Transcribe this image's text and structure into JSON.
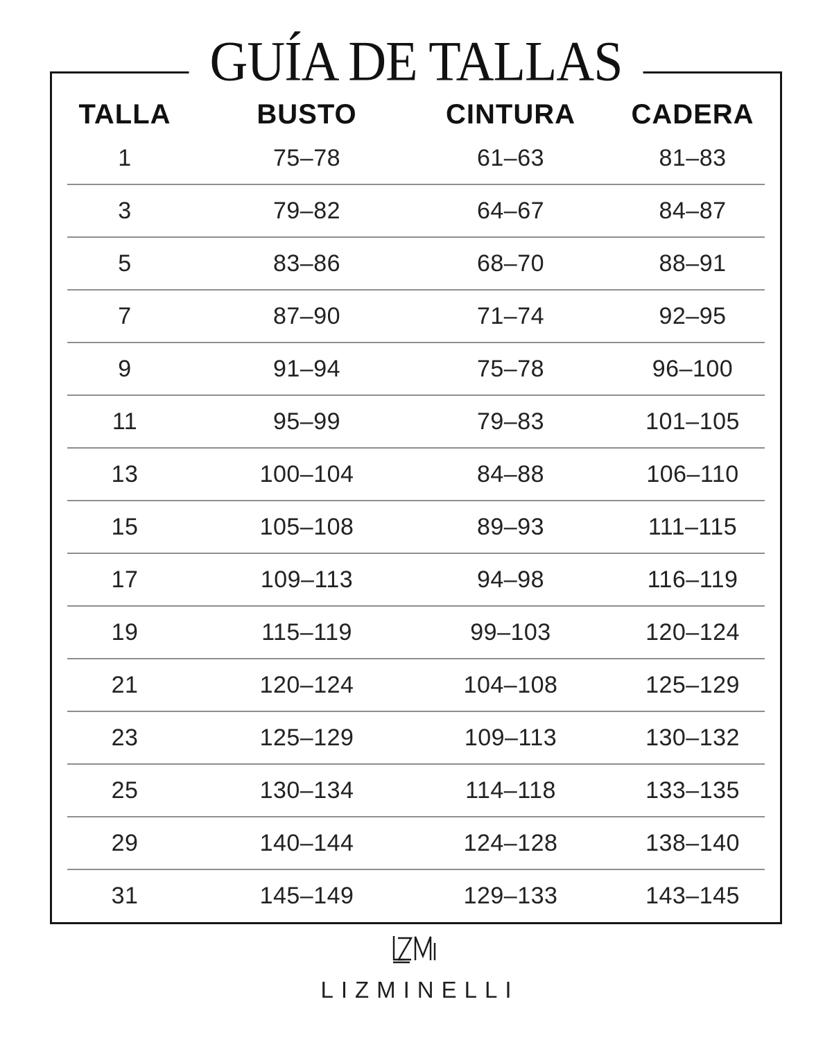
{
  "title": "GUÍA DE TALLAS",
  "chart_data": {
    "type": "table",
    "title": "GUÍA DE TALLAS",
    "columns": [
      "TALLA",
      "BUSTO",
      "CINTURA",
      "CADERA"
    ],
    "rows": [
      [
        "1",
        "75–78",
        "61–63",
        "81–83"
      ],
      [
        "3",
        "79–82",
        "64–67",
        "84–87"
      ],
      [
        "5",
        "83–86",
        "68–70",
        "88–91"
      ],
      [
        "7",
        "87–90",
        "71–74",
        "92–95"
      ],
      [
        "9",
        "91–94",
        "75–78",
        "96–100"
      ],
      [
        "11",
        "95–99",
        "79–83",
        "101–105"
      ],
      [
        "13",
        "100–104",
        "84–88",
        "106–110"
      ],
      [
        "15",
        "105–108",
        "89–93",
        "111–115"
      ],
      [
        "17",
        "109–113",
        "94–98",
        "116–119"
      ],
      [
        "19",
        "115–119",
        "99–103",
        "120–124"
      ],
      [
        "21",
        "120–124",
        "104–108",
        "125–129"
      ],
      [
        "23",
        "125–129",
        "109–113",
        "130–132"
      ],
      [
        "25",
        "130–134",
        "114–118",
        "133–135"
      ],
      [
        "29",
        "140–144",
        "124–128",
        "138–140"
      ],
      [
        "31",
        "145–149",
        "129–133",
        "143–145"
      ]
    ]
  },
  "footer": {
    "logo_text": "LZM",
    "brand": "LIZMINELLI"
  },
  "colors": {
    "text": "#1a1a1a",
    "border": "#161616",
    "separator": "#8e8e8e",
    "background": "#ffffff"
  }
}
